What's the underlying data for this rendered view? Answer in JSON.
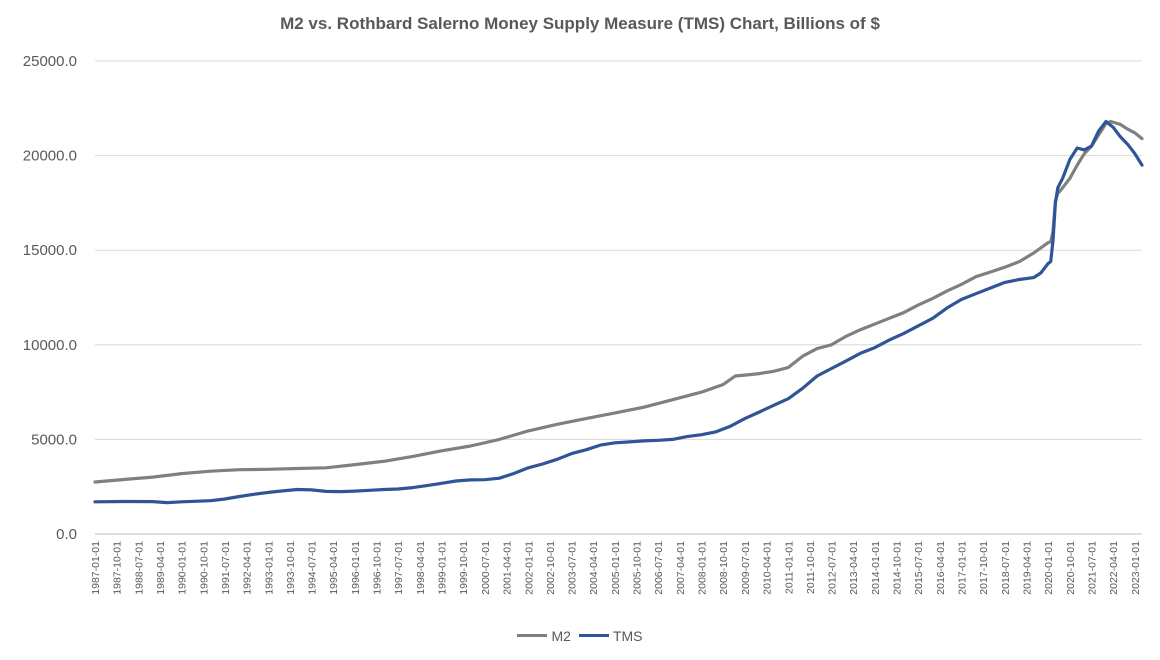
{
  "chart_data": {
    "type": "line",
    "title": "M2 vs. Rothbard Salerno Money Supply Measure (TMS) Chart, Billions of $",
    "xlabel": "",
    "ylabel": "",
    "ylim": [
      0,
      25000
    ],
    "yticks": [
      "0.0",
      "5000.0",
      "10000.0",
      "15000.0",
      "20000.0",
      "25000.0"
    ],
    "xlim": [
      "1987-01-01",
      "2023-04-01"
    ],
    "xticks": [
      "1987-01-01",
      "1987-10-01",
      "1988-07-01",
      "1989-04-01",
      "1990-01-01",
      "1990-10-01",
      "1991-07-01",
      "1992-04-01",
      "1993-01-01",
      "1993-10-01",
      "1994-07-01",
      "1995-04-01",
      "1996-01-01",
      "1996-10-01",
      "1997-07-01",
      "1998-04-01",
      "1999-01-01",
      "1999-10-01",
      "2000-07-01",
      "2001-04-01",
      "2002-01-01",
      "2002-10-01",
      "2003-07-01",
      "2004-04-01",
      "2005-01-01",
      "2005-10-01",
      "2006-07-01",
      "2007-04-01",
      "2008-01-01",
      "2008-10-01",
      "2009-07-01",
      "2010-04-01",
      "2011-01-01",
      "2011-10-01",
      "2012-07-01",
      "2013-04-01",
      "2014-01-01",
      "2014-10-01",
      "2015-07-01",
      "2016-04-01",
      "2017-01-01",
      "2017-10-01",
      "2018-07-01",
      "2019-04-01",
      "2020-01-01",
      "2020-10-01",
      "2021-07-01",
      "2022-04-01",
      "2023-01-01"
    ],
    "grid": "horizontal",
    "legend_position": "bottom",
    "series": [
      {
        "name": "M2",
        "color": "#808080",
        "points": [
          [
            "1987-01-01",
            2750
          ],
          [
            "1988-01-01",
            2880
          ],
          [
            "1989-01-01",
            3010
          ],
          [
            "1990-01-01",
            3190
          ],
          [
            "1991-01-01",
            3320
          ],
          [
            "1992-01-01",
            3400
          ],
          [
            "1993-01-01",
            3420
          ],
          [
            "1994-01-01",
            3460
          ],
          [
            "1995-01-01",
            3500
          ],
          [
            "1996-01-01",
            3670
          ],
          [
            "1997-01-01",
            3840
          ],
          [
            "1998-01-01",
            4100
          ],
          [
            "1999-01-01",
            4400
          ],
          [
            "2000-01-01",
            4650
          ],
          [
            "2001-01-01",
            5000
          ],
          [
            "2002-01-01",
            5450
          ],
          [
            "2003-01-01",
            5800
          ],
          [
            "2004-01-01",
            6100
          ],
          [
            "2005-01-01",
            6400
          ],
          [
            "2006-01-01",
            6700
          ],
          [
            "2007-01-01",
            7100
          ],
          [
            "2008-01-01",
            7500
          ],
          [
            "2008-10-01",
            7900
          ],
          [
            "2009-03-01",
            8350
          ],
          [
            "2009-07-01",
            8400
          ],
          [
            "2010-01-01",
            8480
          ],
          [
            "2010-07-01",
            8600
          ],
          [
            "2011-01-01",
            8800
          ],
          [
            "2011-07-01",
            9400
          ],
          [
            "2012-01-01",
            9800
          ],
          [
            "2012-07-01",
            10000
          ],
          [
            "2013-01-01",
            10450
          ],
          [
            "2013-07-01",
            10800
          ],
          [
            "2014-01-01",
            11100
          ],
          [
            "2014-07-01",
            11400
          ],
          [
            "2015-01-01",
            11700
          ],
          [
            "2015-07-01",
            12100
          ],
          [
            "2016-01-01",
            12450
          ],
          [
            "2016-07-01",
            12850
          ],
          [
            "2017-01-01",
            13200
          ],
          [
            "2017-07-01",
            13600
          ],
          [
            "2018-01-01",
            13850
          ],
          [
            "2018-07-01",
            14100
          ],
          [
            "2019-01-01",
            14400
          ],
          [
            "2019-07-01",
            14850
          ],
          [
            "2020-01-01",
            15400
          ],
          [
            "2020-02-01",
            15450
          ],
          [
            "2020-03-01",
            16000
          ],
          [
            "2020-04-01",
            17600
          ],
          [
            "2020-05-01",
            18000
          ],
          [
            "2020-07-01",
            18300
          ],
          [
            "2020-10-01",
            18800
          ],
          [
            "2021-01-01",
            19500
          ],
          [
            "2021-04-01",
            20100
          ],
          [
            "2021-07-01",
            20500
          ],
          [
            "2021-10-01",
            21100
          ],
          [
            "2022-01-01",
            21700
          ],
          [
            "2022-03-01",
            21800
          ],
          [
            "2022-07-01",
            21650
          ],
          [
            "2022-10-01",
            21400
          ],
          [
            "2023-01-01",
            21200
          ],
          [
            "2023-04-01",
            20900
          ]
        ]
      },
      {
        "name": "TMS",
        "color": "#2F5597",
        "points": [
          [
            "1987-01-01",
            1700
          ],
          [
            "1988-01-01",
            1720
          ],
          [
            "1989-01-01",
            1710
          ],
          [
            "1989-07-01",
            1660
          ],
          [
            "1990-01-01",
            1700
          ],
          [
            "1991-01-01",
            1760
          ],
          [
            "1991-07-01",
            1850
          ],
          [
            "1992-01-01",
            1980
          ],
          [
            "1992-07-01",
            2100
          ],
          [
            "1993-01-01",
            2200
          ],
          [
            "1993-07-01",
            2280
          ],
          [
            "1994-01-01",
            2350
          ],
          [
            "1994-07-01",
            2330
          ],
          [
            "1995-01-01",
            2250
          ],
          [
            "1995-07-01",
            2240
          ],
          [
            "1996-01-01",
            2270
          ],
          [
            "1996-07-01",
            2310
          ],
          [
            "1997-01-01",
            2350
          ],
          [
            "1997-07-01",
            2380
          ],
          [
            "1998-01-01",
            2450
          ],
          [
            "1998-07-01",
            2560
          ],
          [
            "1999-01-01",
            2680
          ],
          [
            "1999-07-01",
            2800
          ],
          [
            "2000-01-01",
            2860
          ],
          [
            "2000-07-01",
            2870
          ],
          [
            "2001-01-01",
            2950
          ],
          [
            "2001-07-01",
            3200
          ],
          [
            "2002-01-01",
            3500
          ],
          [
            "2002-07-01",
            3700
          ],
          [
            "2003-01-01",
            3950
          ],
          [
            "2003-07-01",
            4250
          ],
          [
            "2004-01-01",
            4450
          ],
          [
            "2004-07-01",
            4700
          ],
          [
            "2005-01-01",
            4820
          ],
          [
            "2005-07-01",
            4870
          ],
          [
            "2006-01-01",
            4920
          ],
          [
            "2006-07-01",
            4950
          ],
          [
            "2007-01-01",
            5000
          ],
          [
            "2007-07-01",
            5150
          ],
          [
            "2008-01-01",
            5250
          ],
          [
            "2008-07-01",
            5400
          ],
          [
            "2009-01-01",
            5700
          ],
          [
            "2009-07-01",
            6100
          ],
          [
            "2010-01-01",
            6450
          ],
          [
            "2010-07-01",
            6800
          ],
          [
            "2011-01-01",
            7150
          ],
          [
            "2011-07-01",
            7700
          ],
          [
            "2012-01-01",
            8350
          ],
          [
            "2012-07-01",
            8750
          ],
          [
            "2013-01-01",
            9150
          ],
          [
            "2013-07-01",
            9550
          ],
          [
            "2014-01-01",
            9850
          ],
          [
            "2014-07-01",
            10250
          ],
          [
            "2015-01-01",
            10600
          ],
          [
            "2015-07-01",
            11000
          ],
          [
            "2016-01-01",
            11400
          ],
          [
            "2016-07-01",
            11950
          ],
          [
            "2017-01-01",
            12400
          ],
          [
            "2017-07-01",
            12700
          ],
          [
            "2018-01-01",
            13000
          ],
          [
            "2018-07-01",
            13300
          ],
          [
            "2019-01-01",
            13450
          ],
          [
            "2019-07-01",
            13550
          ],
          [
            "2019-10-01",
            13800
          ],
          [
            "2020-01-01",
            14300
          ],
          [
            "2020-02-01",
            14400
          ],
          [
            "2020-03-01",
            15500
          ],
          [
            "2020-04-01",
            17500
          ],
          [
            "2020-05-01",
            18300
          ],
          [
            "2020-07-01",
            18800
          ],
          [
            "2020-10-01",
            19800
          ],
          [
            "2021-01-01",
            20400
          ],
          [
            "2021-04-01",
            20300
          ],
          [
            "2021-07-01",
            20500
          ],
          [
            "2021-10-01",
            21300
          ],
          [
            "2022-01-01",
            21800
          ],
          [
            "2022-04-01",
            21500
          ],
          [
            "2022-07-01",
            21000
          ],
          [
            "2022-10-01",
            20600
          ],
          [
            "2023-01-01",
            20100
          ],
          [
            "2023-04-01",
            19500
          ]
        ]
      }
    ]
  }
}
